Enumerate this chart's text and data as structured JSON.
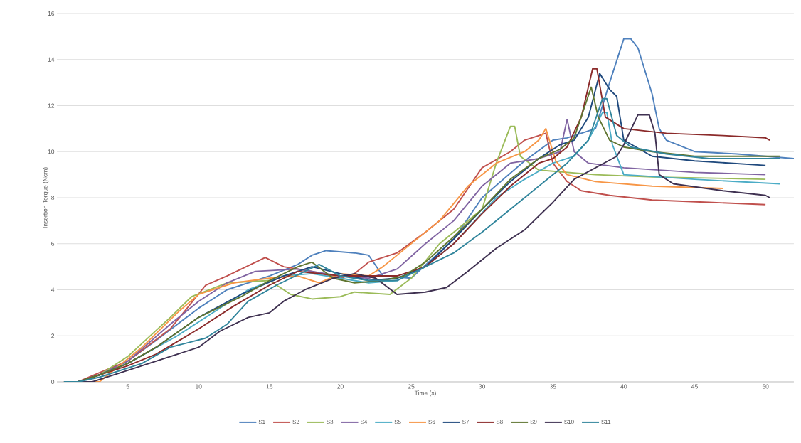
{
  "chart_data": {
    "type": "line",
    "xlabel": "Time (s)",
    "ylabel": "Insertion Torque (Ncm)",
    "xlim": [
      0,
      52
    ],
    "xticks": [
      5,
      10,
      15,
      20,
      25,
      30,
      35,
      40,
      45,
      50
    ],
    "ylim": [
      0,
      16
    ],
    "yticks": [
      0,
      2,
      4,
      6,
      8,
      10,
      12,
      14,
      16
    ],
    "grid": "y",
    "legend": "bottom",
    "marker": "none",
    "line_style": "solid",
    "series": [
      {
        "name": "S1",
        "color": "#4f81bd",
        "x": [
          0.5,
          1.5,
          3,
          5,
          7,
          10,
          12,
          15,
          17,
          18,
          19,
          21,
          22,
          23,
          25,
          28,
          30,
          33,
          35,
          36,
          37,
          38,
          39,
          40,
          40.5,
          41,
          42,
          42.5,
          43,
          45,
          48,
          50,
          52
        ],
        "values": [
          0,
          0,
          0.3,
          0.9,
          1.8,
          3.2,
          4.0,
          4.6,
          5.1,
          5.5,
          5.7,
          5.6,
          5.5,
          4.6,
          4.5,
          6.2,
          8.0,
          9.6,
          10.5,
          10.6,
          10.8,
          11.0,
          13.0,
          14.9,
          14.9,
          14.5,
          12.5,
          11.0,
          10.5,
          10.0,
          9.9,
          9.8,
          9.7
        ]
      },
      {
        "name": "S2",
        "color": "#c0504d",
        "x": [
          0.5,
          1.5,
          3,
          5,
          8,
          10.5,
          12,
          14.7,
          16,
          18,
          20,
          21,
          22,
          24,
          26,
          28,
          30,
          32,
          33,
          34.5,
          35,
          36,
          37,
          39,
          42,
          46,
          50
        ],
        "values": [
          0,
          0,
          0.4,
          0.9,
          2.3,
          4.2,
          4.6,
          5.4,
          5.0,
          4.8,
          4.5,
          4.7,
          5.2,
          5.6,
          6.5,
          7.5,
          9.3,
          10.0,
          10.5,
          10.8,
          9.5,
          8.7,
          8.3,
          8.1,
          7.9,
          7.8,
          7.7
        ]
      },
      {
        "name": "S3",
        "color": "#9bbb59",
        "x": [
          0.5,
          1.5,
          3,
          5,
          8,
          9.5,
          12,
          15,
          16.5,
          18,
          20,
          21,
          23.5,
          25,
          27,
          29,
          30,
          31,
          32,
          32.3,
          32.7,
          34,
          36,
          38,
          42,
          50
        ],
        "values": [
          0,
          0,
          0.3,
          1.1,
          2.8,
          3.7,
          4.3,
          4.4,
          3.8,
          3.6,
          3.7,
          3.9,
          3.8,
          4.5,
          6.0,
          7.0,
          7.5,
          9.5,
          11.1,
          11.1,
          9.8,
          9.2,
          9.1,
          9.0,
          8.9,
          8.8
        ]
      },
      {
        "name": "S4",
        "color": "#8064a2",
        "x": [
          0.5,
          1.5,
          3,
          5,
          8,
          10,
          12,
          14,
          17,
          19,
          20,
          22,
          24,
          26,
          28,
          30,
          32,
          34,
          35.5,
          36,
          36.5,
          37.5,
          40,
          45,
          50
        ],
        "values": [
          0,
          0,
          0.3,
          0.9,
          2.5,
          3.5,
          4.3,
          4.8,
          4.9,
          4.7,
          4.6,
          4.5,
          4.9,
          6.0,
          7.0,
          8.5,
          9.5,
          9.7,
          10.0,
          11.4,
          10.0,
          9.5,
          9.3,
          9.1,
          9.0
        ]
      },
      {
        "name": "S5",
        "color": "#4bacc6",
        "x": [
          0.5,
          1.5,
          3,
          5,
          8.5,
          11,
          13.5,
          16,
          18,
          20,
          22,
          24,
          26,
          28,
          29.5,
          31,
          33,
          35,
          36.5,
          37.5,
          38.5,
          38.8,
          39.2,
          40,
          45,
          51
        ],
        "values": [
          0,
          0,
          0.3,
          0.8,
          2.0,
          3.0,
          4.0,
          4.6,
          4.7,
          4.5,
          4.3,
          4.4,
          5.0,
          6.0,
          7.0,
          8.0,
          8.8,
          9.5,
          9.8,
          10.5,
          11.7,
          11.7,
          10.3,
          9.0,
          8.8,
          8.6
        ]
      },
      {
        "name": "S6",
        "color": "#f79646",
        "x": [
          0.5,
          1.5,
          3,
          6,
          8.5,
          10,
          12.5,
          15,
          17,
          18.5,
          20,
          22,
          23,
          25,
          27,
          29,
          31,
          33,
          34,
          34.5,
          35.2,
          36,
          38,
          42,
          47
        ],
        "values": [
          0,
          0,
          0,
          1.5,
          3.0,
          3.8,
          4.3,
          4.5,
          4.6,
          4.3,
          4.7,
          4.6,
          5.0,
          6.0,
          7.0,
          8.5,
          9.5,
          10.0,
          10.5,
          11.0,
          9.6,
          9.0,
          8.7,
          8.5,
          8.4
        ]
      },
      {
        "name": "S7",
        "color": "#1f497d",
        "x": [
          0.5,
          1.5,
          3,
          5,
          7,
          10,
          13,
          16,
          18,
          20,
          22,
          24,
          26,
          28,
          30,
          32,
          34,
          35.5,
          36.5,
          37.5,
          38.3,
          39,
          39.5,
          40,
          42,
          45,
          50
        ],
        "values": [
          0,
          0,
          0.3,
          0.8,
          1.5,
          2.8,
          3.8,
          4.6,
          5.0,
          4.7,
          4.4,
          4.5,
          5.0,
          6.2,
          7.5,
          8.7,
          9.7,
          10.3,
          10.5,
          11.5,
          13.4,
          12.7,
          12.4,
          10.5,
          9.8,
          9.6,
          9.4
        ]
      },
      {
        "name": "S8",
        "color": "#8b2a2a",
        "x": [
          0.5,
          1.5,
          3,
          5,
          7,
          10,
          12.5,
          15,
          17,
          20,
          22,
          24,
          26,
          28,
          30,
          32,
          34,
          35,
          36,
          37,
          37.8,
          38.1,
          38.7,
          40,
          43,
          47,
          50,
          50.3
        ],
        "values": [
          0,
          0,
          0.3,
          0.7,
          1.2,
          2.3,
          3.3,
          4.2,
          4.8,
          4.6,
          4.6,
          4.6,
          5.0,
          6.0,
          7.3,
          8.5,
          9.5,
          9.7,
          10.2,
          11.5,
          13.6,
          13.6,
          11.5,
          11.0,
          10.8,
          10.7,
          10.6,
          10.5
        ]
      },
      {
        "name": "S9",
        "color": "#5f7530",
        "x": [
          0.5,
          1.5,
          3,
          5,
          7,
          10,
          13,
          15,
          17,
          18,
          19.5,
          21,
          23,
          24.5,
          26,
          28,
          30,
          32,
          34,
          35.5,
          36.5,
          37.7,
          38.2,
          39,
          40,
          42,
          45,
          51
        ],
        "values": [
          0,
          0,
          0.3,
          0.8,
          1.5,
          2.8,
          3.7,
          4.4,
          5.0,
          5.2,
          4.5,
          4.3,
          4.4,
          4.6,
          5.2,
          6.3,
          7.5,
          8.8,
          9.7,
          10.1,
          10.6,
          12.8,
          11.5,
          10.5,
          10.2,
          10.0,
          9.8,
          9.8
        ]
      },
      {
        "name": "S10",
        "color": "#3f3151",
        "x": [
          0.5,
          2.5,
          5,
          7.5,
          10,
          11.5,
          13.5,
          15,
          16,
          17.5,
          19.5,
          21,
          22.5,
          24,
          26,
          27.5,
          29,
          31,
          33,
          35,
          36.5,
          38,
          39.5,
          40,
          41,
          41.8,
          42.2,
          42.5,
          43.5,
          47,
          50,
          50.3
        ],
        "values": [
          0,
          0,
          0.5,
          1.0,
          1.5,
          2.2,
          2.8,
          3.0,
          3.5,
          4.0,
          4.5,
          4.7,
          4.5,
          3.8,
          3.9,
          4.1,
          4.8,
          5.8,
          6.6,
          7.8,
          8.8,
          9.3,
          9.8,
          10.3,
          11.6,
          11.6,
          10.8,
          9.0,
          8.6,
          8.3,
          8.1,
          8.0
        ]
      },
      {
        "name": "S11",
        "color": "#31859c",
        "x": [
          0.5,
          1.5,
          3,
          6,
          8,
          10.5,
          12,
          13.5,
          15.5,
          17.5,
          18.5,
          20,
          22,
          24,
          26,
          28,
          30,
          32,
          34,
          36,
          37.5,
          38.5,
          38.8,
          39.5,
          40.5,
          43,
          46,
          51
        ],
        "values": [
          0,
          0,
          0.2,
          0.8,
          1.5,
          1.9,
          2.5,
          3.5,
          4.2,
          4.8,
          5.1,
          4.6,
          4.4,
          4.4,
          5.0,
          5.6,
          6.5,
          7.5,
          8.5,
          9.5,
          10.5,
          12.3,
          12.3,
          10.7,
          10.2,
          9.9,
          9.7,
          9.7
        ]
      }
    ]
  }
}
